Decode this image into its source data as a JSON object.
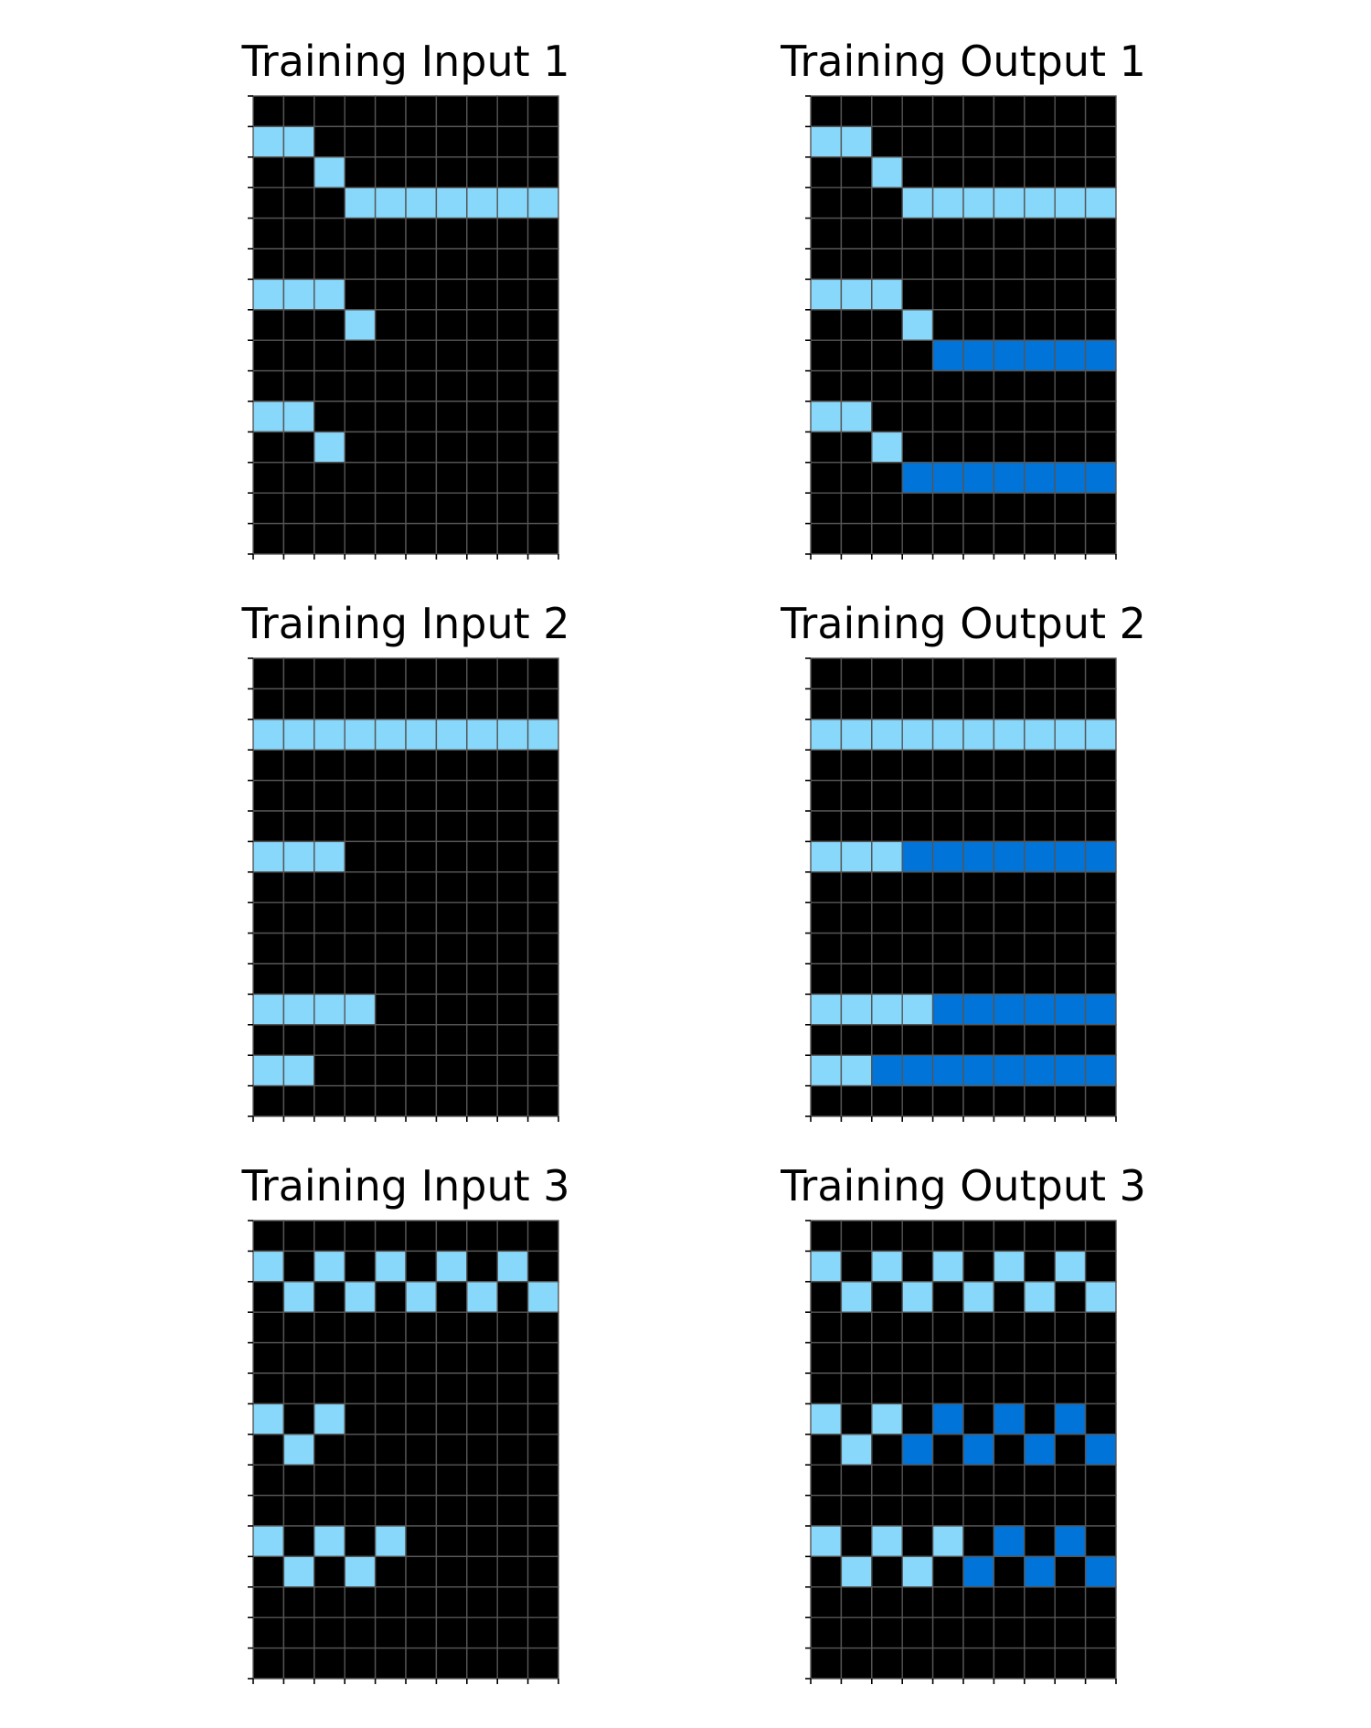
{
  "colors": {
    "background": "#000000",
    "light_blue": "#87d8fa",
    "dark_blue": "#0074d9",
    "grid_line": "#555555"
  },
  "cell_color_key": {
    "0": "background",
    "8": "light_blue",
    "1": "dark_blue"
  },
  "panels": [
    {
      "title": "Training Input 1",
      "rows": 15,
      "cols": 10,
      "grid": [
        [
          0,
          0,
          0,
          0,
          0,
          0,
          0,
          0,
          0,
          0
        ],
        [
          8,
          8,
          0,
          0,
          0,
          0,
          0,
          0,
          0,
          0
        ],
        [
          0,
          0,
          8,
          0,
          0,
          0,
          0,
          0,
          0,
          0
        ],
        [
          0,
          0,
          0,
          8,
          8,
          8,
          8,
          8,
          8,
          8
        ],
        [
          0,
          0,
          0,
          0,
          0,
          0,
          0,
          0,
          0,
          0
        ],
        [
          0,
          0,
          0,
          0,
          0,
          0,
          0,
          0,
          0,
          0
        ],
        [
          8,
          8,
          8,
          0,
          0,
          0,
          0,
          0,
          0,
          0
        ],
        [
          0,
          0,
          0,
          8,
          0,
          0,
          0,
          0,
          0,
          0
        ],
        [
          0,
          0,
          0,
          0,
          0,
          0,
          0,
          0,
          0,
          0
        ],
        [
          0,
          0,
          0,
          0,
          0,
          0,
          0,
          0,
          0,
          0
        ],
        [
          8,
          8,
          0,
          0,
          0,
          0,
          0,
          0,
          0,
          0
        ],
        [
          0,
          0,
          8,
          0,
          0,
          0,
          0,
          0,
          0,
          0
        ],
        [
          0,
          0,
          0,
          0,
          0,
          0,
          0,
          0,
          0,
          0
        ],
        [
          0,
          0,
          0,
          0,
          0,
          0,
          0,
          0,
          0,
          0
        ],
        [
          0,
          0,
          0,
          0,
          0,
          0,
          0,
          0,
          0,
          0
        ]
      ]
    },
    {
      "title": "Training Output 1",
      "rows": 15,
      "cols": 10,
      "grid": [
        [
          0,
          0,
          0,
          0,
          0,
          0,
          0,
          0,
          0,
          0
        ],
        [
          8,
          8,
          0,
          0,
          0,
          0,
          0,
          0,
          0,
          0
        ],
        [
          0,
          0,
          8,
          0,
          0,
          0,
          0,
          0,
          0,
          0
        ],
        [
          0,
          0,
          0,
          8,
          8,
          8,
          8,
          8,
          8,
          8
        ],
        [
          0,
          0,
          0,
          0,
          0,
          0,
          0,
          0,
          0,
          0
        ],
        [
          0,
          0,
          0,
          0,
          0,
          0,
          0,
          0,
          0,
          0
        ],
        [
          8,
          8,
          8,
          0,
          0,
          0,
          0,
          0,
          0,
          0
        ],
        [
          0,
          0,
          0,
          8,
          0,
          0,
          0,
          0,
          0,
          0
        ],
        [
          0,
          0,
          0,
          0,
          1,
          1,
          1,
          1,
          1,
          1
        ],
        [
          0,
          0,
          0,
          0,
          0,
          0,
          0,
          0,
          0,
          0
        ],
        [
          8,
          8,
          0,
          0,
          0,
          0,
          0,
          0,
          0,
          0
        ],
        [
          0,
          0,
          8,
          0,
          0,
          0,
          0,
          0,
          0,
          0
        ],
        [
          0,
          0,
          0,
          1,
          1,
          1,
          1,
          1,
          1,
          1
        ],
        [
          0,
          0,
          0,
          0,
          0,
          0,
          0,
          0,
          0,
          0
        ],
        [
          0,
          0,
          0,
          0,
          0,
          0,
          0,
          0,
          0,
          0
        ]
      ]
    },
    {
      "title": "Training Input 2",
      "rows": 15,
      "cols": 10,
      "grid": [
        [
          0,
          0,
          0,
          0,
          0,
          0,
          0,
          0,
          0,
          0
        ],
        [
          0,
          0,
          0,
          0,
          0,
          0,
          0,
          0,
          0,
          0
        ],
        [
          8,
          8,
          8,
          8,
          8,
          8,
          8,
          8,
          8,
          8
        ],
        [
          0,
          0,
          0,
          0,
          0,
          0,
          0,
          0,
          0,
          0
        ],
        [
          0,
          0,
          0,
          0,
          0,
          0,
          0,
          0,
          0,
          0
        ],
        [
          0,
          0,
          0,
          0,
          0,
          0,
          0,
          0,
          0,
          0
        ],
        [
          8,
          8,
          8,
          0,
          0,
          0,
          0,
          0,
          0,
          0
        ],
        [
          0,
          0,
          0,
          0,
          0,
          0,
          0,
          0,
          0,
          0
        ],
        [
          0,
          0,
          0,
          0,
          0,
          0,
          0,
          0,
          0,
          0
        ],
        [
          0,
          0,
          0,
          0,
          0,
          0,
          0,
          0,
          0,
          0
        ],
        [
          0,
          0,
          0,
          0,
          0,
          0,
          0,
          0,
          0,
          0
        ],
        [
          8,
          8,
          8,
          8,
          0,
          0,
          0,
          0,
          0,
          0
        ],
        [
          0,
          0,
          0,
          0,
          0,
          0,
          0,
          0,
          0,
          0
        ],
        [
          8,
          8,
          0,
          0,
          0,
          0,
          0,
          0,
          0,
          0
        ],
        [
          0,
          0,
          0,
          0,
          0,
          0,
          0,
          0,
          0,
          0
        ]
      ]
    },
    {
      "title": "Training Output 2",
      "rows": 15,
      "cols": 10,
      "grid": [
        [
          0,
          0,
          0,
          0,
          0,
          0,
          0,
          0,
          0,
          0
        ],
        [
          0,
          0,
          0,
          0,
          0,
          0,
          0,
          0,
          0,
          0
        ],
        [
          8,
          8,
          8,
          8,
          8,
          8,
          8,
          8,
          8,
          8
        ],
        [
          0,
          0,
          0,
          0,
          0,
          0,
          0,
          0,
          0,
          0
        ],
        [
          0,
          0,
          0,
          0,
          0,
          0,
          0,
          0,
          0,
          0
        ],
        [
          0,
          0,
          0,
          0,
          0,
          0,
          0,
          0,
          0,
          0
        ],
        [
          8,
          8,
          8,
          1,
          1,
          1,
          1,
          1,
          1,
          1
        ],
        [
          0,
          0,
          0,
          0,
          0,
          0,
          0,
          0,
          0,
          0
        ],
        [
          0,
          0,
          0,
          0,
          0,
          0,
          0,
          0,
          0,
          0
        ],
        [
          0,
          0,
          0,
          0,
          0,
          0,
          0,
          0,
          0,
          0
        ],
        [
          0,
          0,
          0,
          0,
          0,
          0,
          0,
          0,
          0,
          0
        ],
        [
          8,
          8,
          8,
          8,
          1,
          1,
          1,
          1,
          1,
          1
        ],
        [
          0,
          0,
          0,
          0,
          0,
          0,
          0,
          0,
          0,
          0
        ],
        [
          8,
          8,
          1,
          1,
          1,
          1,
          1,
          1,
          1,
          1
        ],
        [
          0,
          0,
          0,
          0,
          0,
          0,
          0,
          0,
          0,
          0
        ]
      ]
    },
    {
      "title": "Training Input 3",
      "rows": 15,
      "cols": 10,
      "grid": [
        [
          0,
          0,
          0,
          0,
          0,
          0,
          0,
          0,
          0,
          0
        ],
        [
          8,
          0,
          8,
          0,
          8,
          0,
          8,
          0,
          8,
          0
        ],
        [
          0,
          8,
          0,
          8,
          0,
          8,
          0,
          8,
          0,
          8
        ],
        [
          0,
          0,
          0,
          0,
          0,
          0,
          0,
          0,
          0,
          0
        ],
        [
          0,
          0,
          0,
          0,
          0,
          0,
          0,
          0,
          0,
          0
        ],
        [
          0,
          0,
          0,
          0,
          0,
          0,
          0,
          0,
          0,
          0
        ],
        [
          8,
          0,
          8,
          0,
          0,
          0,
          0,
          0,
          0,
          0
        ],
        [
          0,
          8,
          0,
          0,
          0,
          0,
          0,
          0,
          0,
          0
        ],
        [
          0,
          0,
          0,
          0,
          0,
          0,
          0,
          0,
          0,
          0
        ],
        [
          0,
          0,
          0,
          0,
          0,
          0,
          0,
          0,
          0,
          0
        ],
        [
          8,
          0,
          8,
          0,
          8,
          0,
          0,
          0,
          0,
          0
        ],
        [
          0,
          8,
          0,
          8,
          0,
          0,
          0,
          0,
          0,
          0
        ],
        [
          0,
          0,
          0,
          0,
          0,
          0,
          0,
          0,
          0,
          0
        ],
        [
          0,
          0,
          0,
          0,
          0,
          0,
          0,
          0,
          0,
          0
        ],
        [
          0,
          0,
          0,
          0,
          0,
          0,
          0,
          0,
          0,
          0
        ]
      ]
    },
    {
      "title": "Training Output 3",
      "rows": 15,
      "cols": 10,
      "grid": [
        [
          0,
          0,
          0,
          0,
          0,
          0,
          0,
          0,
          0,
          0
        ],
        [
          8,
          0,
          8,
          0,
          8,
          0,
          8,
          0,
          8,
          0
        ],
        [
          0,
          8,
          0,
          8,
          0,
          8,
          0,
          8,
          0,
          8
        ],
        [
          0,
          0,
          0,
          0,
          0,
          0,
          0,
          0,
          0,
          0
        ],
        [
          0,
          0,
          0,
          0,
          0,
          0,
          0,
          0,
          0,
          0
        ],
        [
          0,
          0,
          0,
          0,
          0,
          0,
          0,
          0,
          0,
          0
        ],
        [
          8,
          0,
          8,
          0,
          1,
          0,
          1,
          0,
          1,
          0
        ],
        [
          0,
          8,
          0,
          1,
          0,
          1,
          0,
          1,
          0,
          1
        ],
        [
          0,
          0,
          0,
          0,
          0,
          0,
          0,
          0,
          0,
          0
        ],
        [
          0,
          0,
          0,
          0,
          0,
          0,
          0,
          0,
          0,
          0
        ],
        [
          8,
          0,
          8,
          0,
          8,
          0,
          1,
          0,
          1,
          0
        ],
        [
          0,
          8,
          0,
          8,
          0,
          1,
          0,
          1,
          0,
          1
        ],
        [
          0,
          0,
          0,
          0,
          0,
          0,
          0,
          0,
          0,
          0
        ],
        [
          0,
          0,
          0,
          0,
          0,
          0,
          0,
          0,
          0,
          0
        ],
        [
          0,
          0,
          0,
          0,
          0,
          0,
          0,
          0,
          0,
          0
        ]
      ]
    }
  ]
}
